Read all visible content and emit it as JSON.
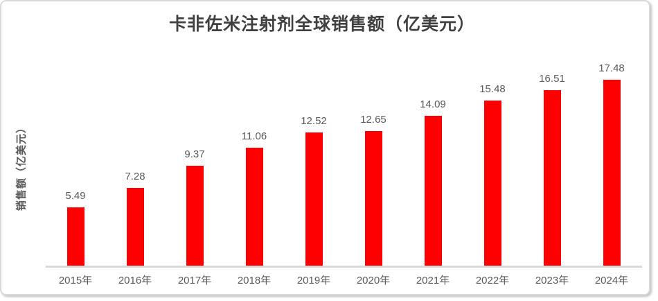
{
  "chart_data": {
    "type": "bar",
    "title": "卡非佐米注射剂全球销售额（亿美元）",
    "xlabel": "",
    "ylabel": "销售额（亿美元）",
    "categories": [
      "2015年",
      "2016年",
      "2017年",
      "2018年",
      "2019年",
      "2020年",
      "2021年",
      "2022年",
      "2023年",
      "2024年"
    ],
    "values": [
      5.49,
      7.28,
      9.37,
      11.06,
      12.52,
      12.65,
      14.09,
      15.48,
      16.51,
      17.48
    ],
    "data_labels": [
      "5.49",
      "7.28",
      "9.37",
      "11.06",
      "12.52",
      "12.65",
      "14.09",
      "15.48",
      "16.51",
      "17.48"
    ],
    "ylim": [
      0,
      20
    ],
    "grid": false,
    "legend": false,
    "y_axis_visible": false,
    "x_axis_line": true
  },
  "colors": {
    "bar": "#FF0000",
    "axis_line": "#D9D9D9",
    "card_border": "#D9D9D9",
    "title_text": "#404040",
    "label_text": "#595959",
    "background": "#FFFFFF"
  }
}
